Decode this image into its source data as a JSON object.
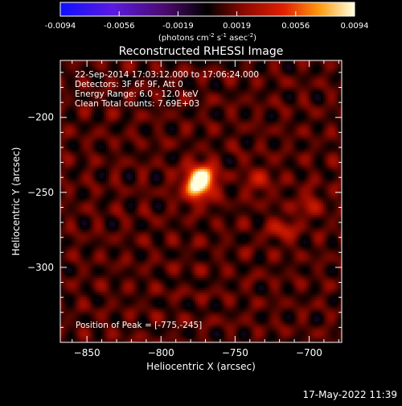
{
  "colorbar": {
    "ticks": [
      "-0.0094",
      "-0.0056",
      "-0.0019",
      "0.0019",
      "0.0056",
      "0.0094"
    ],
    "units_prefix": "(photons cm",
    "units_exp1": "-2",
    "units_mid": " s",
    "units_exp2": "-1",
    "units_mid2": " asec",
    "units_exp3": "-2",
    "units_suffix": ")",
    "vmin": -0.0094,
    "vmax": 0.0094
  },
  "title": "Reconstructed RHESSI Image",
  "info": {
    "line1": "22-Sep-2014 17:03:12.000 to 17:06:24.000",
    "line2": "Detectors: 3F 6F 9F, Att 0",
    "line3": "Energy Range: 6.0 - 12.0 keV",
    "line4": "Clean    Total counts: 7.69E+03"
  },
  "peak_label": "Position of Peak = [-775,-245]",
  "footer_date": "17-May-2022 11:39",
  "colors": {
    "background": "#000000",
    "axis": "#ffffff"
  },
  "chart_data": {
    "type": "heatmap",
    "title": "Reconstructed RHESSI Image",
    "xlabel": "Heliocentric X (arcsec)",
    "ylabel": "Heliocentric Y (arcsec)",
    "xlim": [
      -868,
      -678
    ],
    "ylim": [
      -350,
      -162
    ],
    "xticks": [
      -850,
      -800,
      -750,
      -700
    ],
    "yticks": [
      -200,
      -250,
      -300
    ],
    "x_tick_labels": [
      "-850",
      "-800",
      "-750",
      "-700"
    ],
    "y_tick_labels": [
      "-200",
      "-250",
      "-300"
    ],
    "colormap": "rainbow-style blue-purple-black-red-orange-yellow-white",
    "peak": {
      "x": -775,
      "y": -245
    },
    "sources": [
      {
        "x": -775,
        "y": -245,
        "amp": 1.0,
        "sigma": 6.5
      },
      {
        "x": -771,
        "y": -238,
        "amp": 0.55,
        "sigma": 5
      },
      {
        "x": -718,
        "y": -275,
        "amp": 0.35,
        "sigma": 5
      },
      {
        "x": -734,
        "y": -242,
        "amp": 0.25,
        "sigma": 6
      },
      {
        "x": -700,
        "y": -258,
        "amp": 0.22,
        "sigma": 6
      }
    ]
  }
}
